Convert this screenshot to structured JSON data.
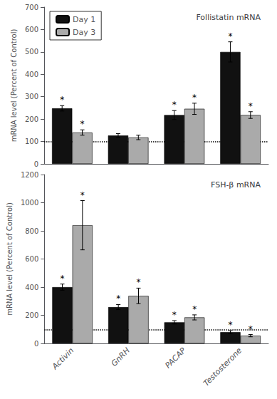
{
  "chart_data": [
    {
      "type": "bar",
      "title": "Follistatin mRNA",
      "ylabel": "mRNA level (Percent of Control)",
      "categories": [
        "Activin",
        "GnRH",
        "PACAP",
        "Testosterone"
      ],
      "series": [
        {
          "name": "Day 1",
          "color": "#111111",
          "values": [
            248,
            127,
            218,
            500
          ],
          "errors": [
            12,
            8,
            20,
            45
          ],
          "annotations": [
            "*",
            null,
            "*",
            "*"
          ]
        },
        {
          "name": "Day 3",
          "color": "#aaaaaa",
          "values": [
            140,
            118,
            246,
            218
          ],
          "errors": [
            12,
            10,
            25,
            15
          ],
          "annotations": [
            "*",
            null,
            "*",
            "*"
          ]
        }
      ],
      "reference_line": 100,
      "ylim": [
        0,
        700
      ],
      "yticks": [
        0,
        100,
        200,
        300,
        400,
        500,
        600,
        700
      ],
      "grid": false,
      "legend": "upper left",
      "tick_labels": "y"
    },
    {
      "type": "bar",
      "title": "FSH-β mRNA",
      "ylabel": "mRNA level (Percent of Control)",
      "categories": [
        "Activin",
        "GnRH",
        "PACAP",
        "Testosterone"
      ],
      "series": [
        {
          "name": "Day 1",
          "color": "#111111",
          "values": [
            400,
            258,
            150,
            80
          ],
          "errors": [
            22,
            18,
            12,
            10
          ],
          "annotations": [
            "*",
            "*",
            "*",
            "*"
          ]
        },
        {
          "name": "Day 3",
          "color": "#aaaaaa",
          "values": [
            840,
            338,
            185,
            55
          ],
          "errors": [
            175,
            55,
            18,
            8
          ],
          "annotations": [
            "*",
            "*",
            "*",
            "*"
          ]
        }
      ],
      "reference_line": 100,
      "ylim": [
        0,
        1200
      ],
      "yticks": [
        0,
        200,
        400,
        600,
        800,
        1000,
        1200
      ],
      "grid": false,
      "tick_labels": true
    }
  ]
}
